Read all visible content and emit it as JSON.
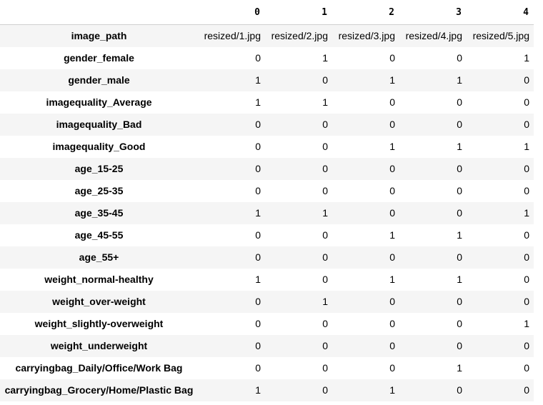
{
  "table": {
    "columns": [
      "0",
      "1",
      "2",
      "3",
      "4"
    ],
    "rows": [
      {
        "label": "image_path",
        "values": [
          "resized/1.jpg",
          "resized/2.jpg",
          "resized/3.jpg",
          "resized/4.jpg",
          "resized/5.jpg"
        ]
      },
      {
        "label": "gender_female",
        "values": [
          "0",
          "1",
          "0",
          "0",
          "1"
        ]
      },
      {
        "label": "gender_male",
        "values": [
          "1",
          "0",
          "1",
          "1",
          "0"
        ]
      },
      {
        "label": "imagequality_Average",
        "values": [
          "1",
          "1",
          "0",
          "0",
          "0"
        ]
      },
      {
        "label": "imagequality_Bad",
        "values": [
          "0",
          "0",
          "0",
          "0",
          "0"
        ]
      },
      {
        "label": "imagequality_Good",
        "values": [
          "0",
          "0",
          "1",
          "1",
          "1"
        ]
      },
      {
        "label": "age_15-25",
        "values": [
          "0",
          "0",
          "0",
          "0",
          "0"
        ]
      },
      {
        "label": "age_25-35",
        "values": [
          "0",
          "0",
          "0",
          "0",
          "0"
        ]
      },
      {
        "label": "age_35-45",
        "values": [
          "1",
          "1",
          "0",
          "0",
          "1"
        ]
      },
      {
        "label": "age_45-55",
        "values": [
          "0",
          "0",
          "1",
          "1",
          "0"
        ]
      },
      {
        "label": "age_55+",
        "values": [
          "0",
          "0",
          "0",
          "0",
          "0"
        ]
      },
      {
        "label": "weight_normal-healthy",
        "values": [
          "1",
          "0",
          "1",
          "1",
          "0"
        ]
      },
      {
        "label": "weight_over-weight",
        "values": [
          "0",
          "1",
          "0",
          "0",
          "0"
        ]
      },
      {
        "label": "weight_slightly-overweight",
        "values": [
          "0",
          "0",
          "0",
          "0",
          "1"
        ]
      },
      {
        "label": "weight_underweight",
        "values": [
          "0",
          "0",
          "0",
          "0",
          "0"
        ]
      },
      {
        "label": "carryingbag_Daily/Office/Work Bag",
        "values": [
          "0",
          "0",
          "0",
          "1",
          "0"
        ]
      },
      {
        "label": "carryingbag_Grocery/Home/Plastic Bag",
        "values": [
          "1",
          "0",
          "1",
          "0",
          "0"
        ]
      }
    ]
  }
}
